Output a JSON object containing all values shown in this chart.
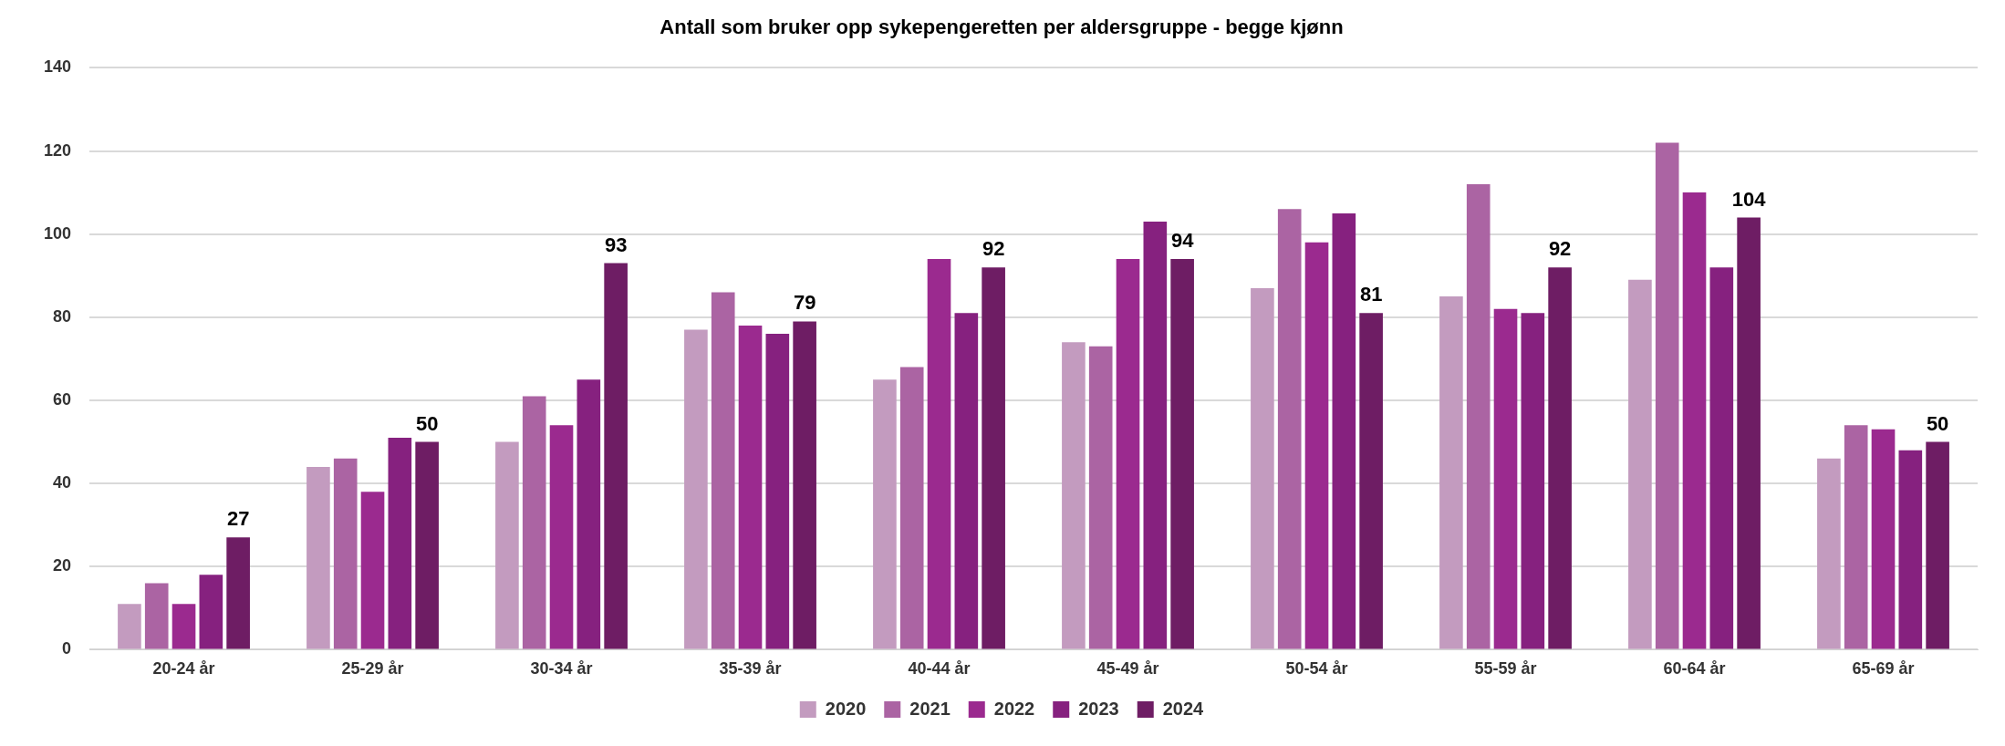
{
  "chart_data": {
    "type": "bar",
    "title": "Antall som bruker opp sykepengeretten per aldersgruppe - begge kjønn",
    "categories": [
      "20-24 år",
      "25-29 år",
      "30-34 år",
      "35-39 år",
      "40-44 år",
      "45-49 år",
      "50-54 år",
      "55-59 år",
      "60-64 år",
      "65-69 år"
    ],
    "series": [
      {
        "name": "2020",
        "color": "#c39bbf",
        "values": [
          11,
          44,
          50,
          77,
          65,
          74,
          87,
          85,
          89,
          46
        ]
      },
      {
        "name": "2021",
        "color": "#ab64a3",
        "values": [
          16,
          46,
          61,
          86,
          68,
          73,
          106,
          112,
          122,
          54
        ]
      },
      {
        "name": "2022",
        "color": "#9b2a8f",
        "values": [
          11,
          38,
          54,
          78,
          94,
          94,
          98,
          82,
          110,
          53
        ]
      },
      {
        "name": "2023",
        "color": "#86217f",
        "values": [
          18,
          51,
          65,
          76,
          81,
          103,
          105,
          81,
          92,
          48
        ]
      },
      {
        "name": "2024",
        "color": "#6e1d64",
        "values": [
          27,
          50,
          93,
          79,
          92,
          94,
          81,
          92,
          104,
          50
        ],
        "value_labels": [
          "27",
          "50",
          "93",
          "79",
          "92",
          "94",
          "81",
          "92",
          "104",
          "50"
        ]
      }
    ],
    "ylim": [
      0,
      140
    ],
    "yticks": [
      0,
      20,
      40,
      60,
      80,
      100,
      120,
      140
    ],
    "grid": "y",
    "legend": "bottom"
  }
}
